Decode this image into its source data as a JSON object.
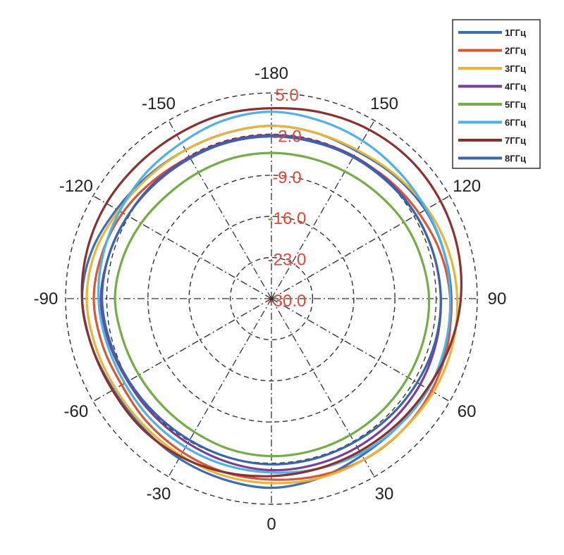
{
  "chart_data": {
    "type": "polar-line",
    "title": "",
    "theta_direction": "clockwise",
    "theta_zero": "bottom",
    "angle_ticks": [
      -180,
      150,
      120,
      90,
      60,
      30,
      0,
      -30,
      -60,
      -90,
      -120,
      -150
    ],
    "radial_ticks": [
      "5.0",
      "-2.0",
      "-9.0",
      "-16.0",
      "-23.0",
      "-30.0"
    ],
    "rlim": [
      -30,
      5
    ],
    "grid": true,
    "legend_position": "top-right",
    "series": [
      {
        "name": "1ГГц",
        "color": "#3b6fb0",
        "r": [
          2.2,
          1.8,
          1.4,
          1.0,
          1.0,
          1.6,
          2.2,
          1.6,
          0.4,
          -0.4,
          -0.8,
          -0.8,
          -0.6,
          -0.8,
          -1.0,
          -0.4,
          0.2,
          0.4,
          0.6,
          0.8,
          0.8,
          0.6,
          0.8,
          1.6,
          2.2
        ]
      },
      {
        "name": "2ГГц",
        "color": "#d4583a",
        "r": [
          0.8,
          0.6,
          0.2,
          -0.2,
          -0.6,
          -0.2,
          0.2,
          -0.2,
          -0.8,
          -1.6,
          -2.2,
          -2.4,
          -2.2,
          -2.2,
          -2.2,
          -1.6,
          -1.0,
          -0.2,
          0.4,
          1.0,
          1.4,
          1.6,
          1.6,
          1.2,
          0.8
        ]
      },
      {
        "name": "3ГГц",
        "color": "#e8b53a",
        "r": [
          1.4,
          1.2,
          0.8,
          0.6,
          0.6,
          1.0,
          1.4,
          1.0,
          0.0,
          -0.6,
          -0.8,
          -0.8,
          -0.6,
          -0.8,
          -0.8,
          -0.2,
          0.6,
          1.2,
          1.6,
          1.8,
          1.8,
          1.6,
          1.6,
          1.6,
          1.4
        ]
      },
      {
        "name": "4ГГц",
        "color": "#7a3f96",
        "r": [
          -0.8,
          -1.2,
          -1.6,
          -1.8,
          -1.8,
          -1.4,
          -1.0,
          -1.4,
          -1.8,
          -2.0,
          -2.2,
          -2.2,
          -2.2,
          -2.2,
          -2.0,
          -1.8,
          -1.6,
          -1.4,
          -1.2,
          -1.0,
          -0.8,
          -0.8,
          -0.8,
          -0.8,
          -0.8
        ]
      },
      {
        "name": "5ГГц",
        "color": "#74ad47",
        "r": [
          -3.2,
          -3.4,
          -3.8,
          -4.0,
          -4.0,
          -3.8,
          -3.4,
          -3.8,
          -4.4,
          -5.0,
          -5.2,
          -5.2,
          -5.2,
          -5.2,
          -5.0,
          -4.6,
          -4.0,
          -3.6,
          -3.2,
          -3.2,
          -3.2,
          -3.2,
          -3.2,
          -3.2,
          -3.2
        ]
      },
      {
        "name": "6ГГц",
        "color": "#4fb1e4",
        "r": [
          -0.4,
          -0.6,
          -0.8,
          -1.0,
          -1.2,
          -1.0,
          -0.6,
          -0.4,
          -0.2,
          0.2,
          0.6,
          1.4,
          1.8,
          1.4,
          1.0,
          0.6,
          0.4,
          0.4,
          0.4,
          0.6,
          0.8,
          0.6,
          0.4,
          0.0,
          -0.4
        ]
      },
      {
        "name": "7ГГц",
        "color": "#8b3030",
        "r": [
          0.2,
          0.6,
          1.0,
          1.2,
          1.2,
          1.6,
          2.2,
          2.4,
          2.4,
          2.2,
          2.2,
          2.4,
          2.4,
          2.8,
          3.2,
          3.4,
          3.2,
          2.8,
          2.2,
          1.4,
          0.6,
          0.2,
          0.0,
          0.0,
          0.2
        ]
      },
      {
        "name": "8ГГц",
        "color": "#3a66a7",
        "r": [
          -1.8,
          -2.0,
          -2.2,
          -2.2,
          -2.0,
          -1.6,
          -1.2,
          -1.4,
          -1.8,
          -2.2,
          -2.4,
          -2.4,
          -2.4,
          -2.4,
          -2.2,
          -2.0,
          -1.6,
          -1.4,
          -1.2,
          -1.2,
          -1.4,
          -1.6,
          -1.8,
          -1.8,
          -1.8
        ]
      }
    ],
    "theta_samples_deg": [
      0,
      15,
      30,
      45,
      60,
      75,
      90,
      105,
      120,
      135,
      150,
      165,
      180,
      195,
      210,
      225,
      240,
      255,
      270,
      285,
      300,
      315,
      330,
      345,
      360
    ]
  }
}
